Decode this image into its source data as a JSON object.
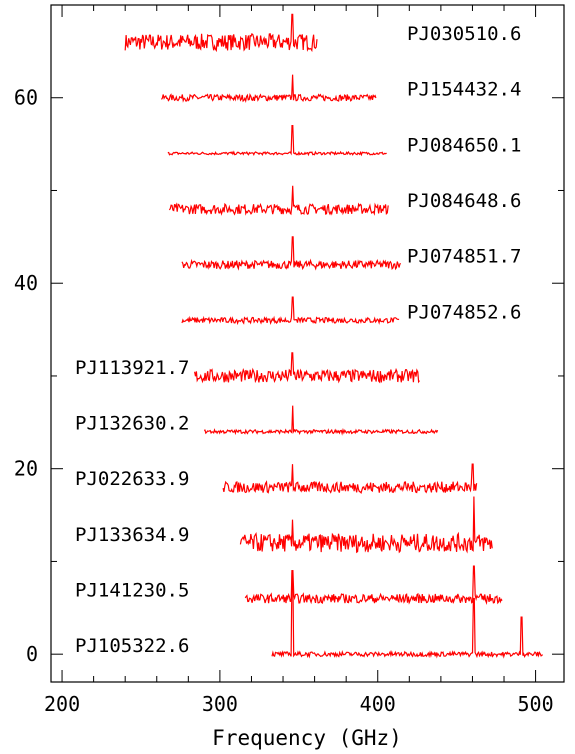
{
  "chart_data": {
    "type": "line",
    "title": "",
    "xlabel": "Frequency (GHz)",
    "ylabel": "",
    "xlim": [
      193,
      518
    ],
    "ylim": [
      -3,
      70
    ],
    "xticks": [
      200,
      300,
      400,
      500
    ],
    "yticks": [
      0,
      20,
      40,
      60
    ],
    "line_color": "#ff0000",
    "series": [
      {
        "name": "PJ030510.6",
        "offset": 66,
        "x_range": [
          240,
          362
        ],
        "noise": 0.9,
        "lines": [
          {
            "x": 346,
            "h": 3.0
          }
        ]
      },
      {
        "name": "PJ154432.4",
        "offset": 60,
        "x_range": [
          263,
          399
        ],
        "noise": 0.35,
        "lines": [
          {
            "x": 346,
            "h": 2.5
          }
        ]
      },
      {
        "name": "PJ084650.1",
        "offset": 54,
        "x_range": [
          267,
          406
        ],
        "noise": 0.15,
        "lines": [
          {
            "x": 346,
            "h": 3.0
          }
        ]
      },
      {
        "name": "PJ084648.6",
        "offset": 48,
        "x_range": [
          268,
          407
        ],
        "noise": 0.55,
        "lines": [
          {
            "x": 346,
            "h": 2.5
          }
        ]
      },
      {
        "name": "PJ074851.7",
        "offset": 42,
        "x_range": [
          276,
          415
        ],
        "noise": 0.45,
        "lines": [
          {
            "x": 346,
            "h": 3.0
          }
        ]
      },
      {
        "name": "PJ074852.6",
        "offset": 36,
        "x_range": [
          276,
          414
        ],
        "noise": 0.3,
        "lines": [
          {
            "x": 346,
            "h": 2.5
          }
        ]
      },
      {
        "name": "PJ113921.7",
        "offset": 30,
        "x_range": [
          284,
          427
        ],
        "noise": 0.7,
        "lines": [
          {
            "x": 346,
            "h": 2.5
          }
        ]
      },
      {
        "name": "PJ132630.2",
        "offset": 24,
        "x_range": [
          290,
          438
        ],
        "noise": 0.2,
        "lines": [
          {
            "x": 346,
            "h": 2.8
          }
        ]
      },
      {
        "name": "PJ022633.9",
        "offset": 18,
        "x_range": [
          302,
          463
        ],
        "noise": 0.6,
        "lines": [
          {
            "x": 346,
            "h": 2.5
          },
          {
            "x": 460,
            "h": 2.5
          }
        ]
      },
      {
        "name": "PJ133634.9",
        "offset": 12,
        "x_range": [
          313,
          473
        ],
        "noise": 1.0,
        "lines": [
          {
            "x": 346,
            "h": 2.5
          },
          {
            "x": 461,
            "h": 5.0
          }
        ]
      },
      {
        "name": "PJ141230.5",
        "offset": 6,
        "x_range": [
          316,
          479
        ],
        "noise": 0.5,
        "lines": [
          {
            "x": 346,
            "h": 3.0
          },
          {
            "x": 461,
            "h": 3.5
          }
        ]
      },
      {
        "name": "PJ105322.6",
        "offset": 0,
        "x_range": [
          333,
          505
        ],
        "noise": 0.25,
        "lines": [
          {
            "x": 346,
            "h": 9.0
          },
          {
            "x": 461,
            "h": 6.0
          },
          {
            "x": 491,
            "h": 4.0
          }
        ]
      }
    ]
  }
}
